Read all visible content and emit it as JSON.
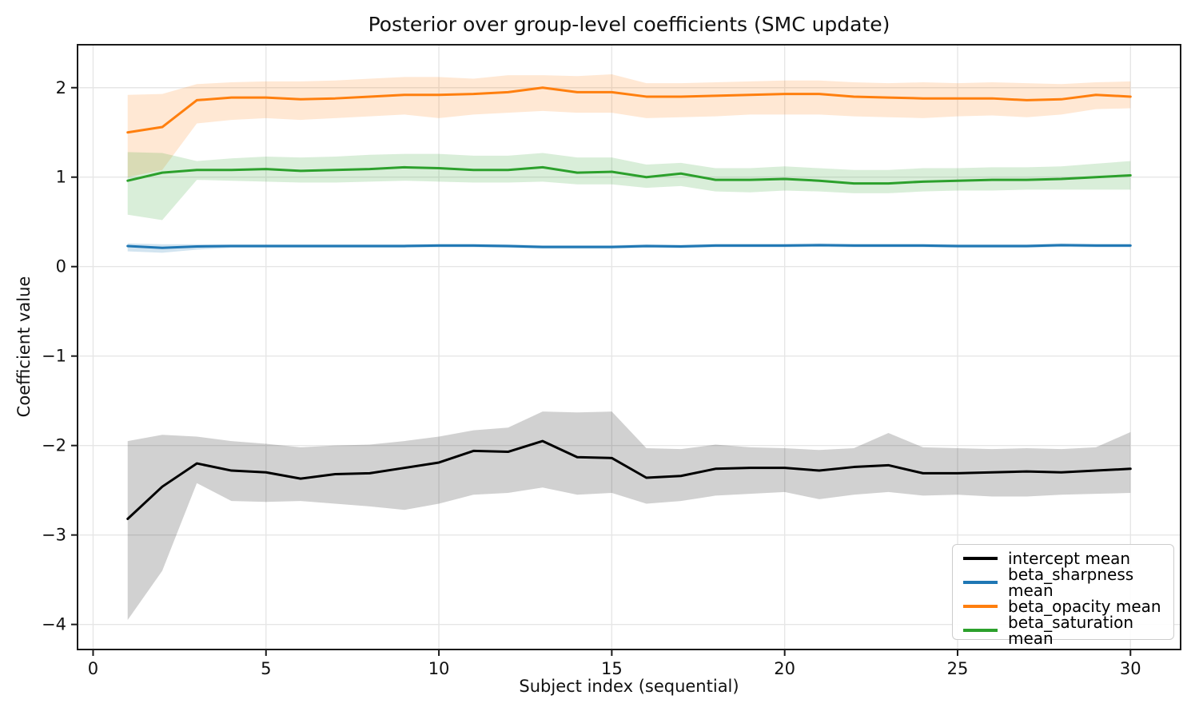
{
  "chart_data": {
    "type": "line",
    "title": "Posterior over group-level coefficients (SMC update)",
    "xlabel": "Subject index (sequential)",
    "ylabel": "Coefficient value",
    "grid": true,
    "legend_position": "lower right",
    "xlim": [
      -0.45,
      31.45
    ],
    "ylim": [
      -4.28,
      2.48
    ],
    "xticks": [
      0,
      5,
      10,
      15,
      20,
      25,
      30
    ],
    "xticklabels": [
      "0",
      "5",
      "10",
      "15",
      "20",
      "25",
      "30"
    ],
    "yticks": [
      2,
      1,
      0,
      -1,
      -2,
      -3,
      -4
    ],
    "yticklabels": [
      "2",
      "1",
      "0",
      "−1",
      "−2",
      "−3",
      "−4"
    ],
    "x": [
      1,
      2,
      3,
      4,
      5,
      6,
      7,
      8,
      9,
      10,
      11,
      12,
      13,
      14,
      15,
      16,
      17,
      18,
      19,
      20,
      21,
      22,
      23,
      24,
      25,
      26,
      27,
      28,
      29,
      30
    ],
    "series": [
      {
        "name": "intercept mean",
        "color": "#000000",
        "band_opacity": 0.18,
        "values": [
          -2.82,
          -2.46,
          -2.2,
          -2.28,
          -2.3,
          -2.37,
          -2.32,
          -2.31,
          -2.25,
          -2.19,
          -2.06,
          -2.07,
          -1.95,
          -2.13,
          -2.14,
          -2.36,
          -2.34,
          -2.26,
          -2.25,
          -2.25,
          -2.28,
          -2.24,
          -2.22,
          -2.31,
          -2.31,
          -2.3,
          -2.29,
          -2.3,
          -2.28,
          -2.26
        ],
        "lower": [
          -3.95,
          -3.4,
          -2.42,
          -2.62,
          -2.63,
          -2.62,
          -2.65,
          -2.68,
          -2.72,
          -2.65,
          -2.55,
          -2.53,
          -2.47,
          -2.55,
          -2.53,
          -2.65,
          -2.62,
          -2.56,
          -2.54,
          -2.52,
          -2.6,
          -2.55,
          -2.52,
          -2.56,
          -2.55,
          -2.57,
          -2.57,
          -2.55,
          -2.54,
          -2.53
        ],
        "upper": [
          -1.95,
          -1.88,
          -1.9,
          -1.95,
          -1.98,
          -2.02,
          -2.0,
          -1.99,
          -1.95,
          -1.9,
          -1.83,
          -1.8,
          -1.62,
          -1.63,
          -1.62,
          -2.03,
          -2.04,
          -1.99,
          -2.02,
          -2.03,
          -2.05,
          -2.03,
          -1.86,
          -2.02,
          -2.03,
          -2.04,
          -2.03,
          -2.04,
          -2.02,
          -1.85
        ]
      },
      {
        "name": "beta_sharpness mean",
        "color": "#1f77b4",
        "band_opacity": 0.2,
        "values": [
          0.23,
          0.21,
          0.225,
          0.23,
          0.23,
          0.23,
          0.23,
          0.23,
          0.23,
          0.235,
          0.235,
          0.23,
          0.22,
          0.22,
          0.22,
          0.23,
          0.225,
          0.235,
          0.235,
          0.235,
          0.24,
          0.235,
          0.235,
          0.235,
          0.23,
          0.23,
          0.23,
          0.24,
          0.235,
          0.235
        ],
        "lower": [
          0.17,
          0.155,
          0.19,
          0.21,
          0.21,
          0.21,
          0.21,
          0.21,
          0.21,
          0.215,
          0.215,
          0.21,
          0.2,
          0.2,
          0.2,
          0.21,
          0.205,
          0.215,
          0.215,
          0.215,
          0.22,
          0.215,
          0.215,
          0.215,
          0.21,
          0.21,
          0.21,
          0.22,
          0.215,
          0.215
        ],
        "upper": [
          0.26,
          0.25,
          0.25,
          0.25,
          0.25,
          0.25,
          0.25,
          0.25,
          0.25,
          0.255,
          0.255,
          0.25,
          0.24,
          0.24,
          0.24,
          0.25,
          0.245,
          0.255,
          0.255,
          0.255,
          0.26,
          0.255,
          0.255,
          0.255,
          0.25,
          0.25,
          0.25,
          0.26,
          0.255,
          0.255
        ]
      },
      {
        "name": "beta_opacity mean",
        "color": "#ff7f0e",
        "band_opacity": 0.18,
        "values": [
          1.5,
          1.56,
          1.86,
          1.89,
          1.89,
          1.87,
          1.88,
          1.9,
          1.92,
          1.92,
          1.93,
          1.95,
          2.0,
          1.95,
          1.95,
          1.9,
          1.9,
          1.91,
          1.92,
          1.93,
          1.93,
          1.9,
          1.89,
          1.88,
          1.88,
          1.88,
          1.86,
          1.87,
          1.92,
          1.9
        ],
        "lower": [
          1.0,
          1.08,
          1.6,
          1.64,
          1.66,
          1.64,
          1.66,
          1.68,
          1.7,
          1.66,
          1.7,
          1.72,
          1.74,
          1.72,
          1.72,
          1.66,
          1.67,
          1.68,
          1.7,
          1.7,
          1.7,
          1.68,
          1.67,
          1.66,
          1.68,
          1.69,
          1.67,
          1.7,
          1.76,
          1.77
        ],
        "upper": [
          1.92,
          1.93,
          2.04,
          2.06,
          2.07,
          2.07,
          2.08,
          2.1,
          2.12,
          2.12,
          2.1,
          2.14,
          2.14,
          2.13,
          2.15,
          2.05,
          2.05,
          2.06,
          2.07,
          2.08,
          2.08,
          2.06,
          2.05,
          2.06,
          2.05,
          2.06,
          2.05,
          2.04,
          2.06,
          2.07
        ]
      },
      {
        "name": "beta_saturation mean",
        "color": "#2ca02c",
        "band_opacity": 0.18,
        "values": [
          0.96,
          1.05,
          1.08,
          1.08,
          1.09,
          1.07,
          1.08,
          1.09,
          1.11,
          1.1,
          1.08,
          1.08,
          1.11,
          1.05,
          1.06,
          1.0,
          1.04,
          0.97,
          0.97,
          0.98,
          0.96,
          0.93,
          0.93,
          0.95,
          0.96,
          0.97,
          0.97,
          0.98,
          1.0,
          1.02
        ],
        "lower": [
          0.58,
          0.52,
          0.97,
          0.96,
          0.95,
          0.94,
          0.94,
          0.95,
          0.96,
          0.95,
          0.94,
          0.94,
          0.95,
          0.92,
          0.92,
          0.88,
          0.9,
          0.84,
          0.83,
          0.85,
          0.84,
          0.82,
          0.82,
          0.84,
          0.85,
          0.85,
          0.86,
          0.86,
          0.86,
          0.86
        ],
        "upper": [
          1.28,
          1.27,
          1.18,
          1.21,
          1.23,
          1.22,
          1.23,
          1.25,
          1.26,
          1.26,
          1.24,
          1.24,
          1.27,
          1.22,
          1.22,
          1.14,
          1.16,
          1.1,
          1.1,
          1.12,
          1.1,
          1.08,
          1.08,
          1.1,
          1.1,
          1.11,
          1.11,
          1.12,
          1.15,
          1.18
        ]
      }
    ],
    "style": {
      "grid_color": "#e6e6e6",
      "spine_color": "#1a1a1a",
      "tick_color": "#1a1a1a",
      "background": "#ffffff"
    }
  }
}
